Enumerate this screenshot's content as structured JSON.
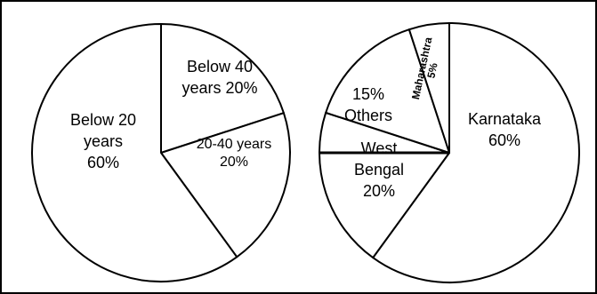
{
  "chart_data": [
    {
      "type": "pie",
      "title": "",
      "slices": [
        {
          "label": "Below 40 years",
          "value": 20,
          "value_label": "20%"
        },
        {
          "label": "20-40 years",
          "value": 20,
          "value_label": "20%"
        },
        {
          "label": "Below 20 years",
          "value": 60,
          "value_label": "60%"
        }
      ],
      "start": "top",
      "direction": "clockwise",
      "legend": "none",
      "slice_fill": "#ffffff",
      "stroke_color": "#000000"
    },
    {
      "type": "pie",
      "title": "",
      "slices": [
        {
          "label": "Karnataka",
          "value": 60,
          "value_label": "60%"
        },
        {
          "label": "West Bengal",
          "value": 20,
          "value_label": "20%"
        },
        {
          "label": "Others",
          "value": 15,
          "value_label": "15%"
        },
        {
          "label": "Maharashtra",
          "value": 5,
          "value_label": "5%"
        }
      ],
      "start": "top",
      "direction": "clockwise",
      "legend": "none",
      "slice_fill": "#ffffff",
      "stroke_color": "#000000"
    }
  ]
}
